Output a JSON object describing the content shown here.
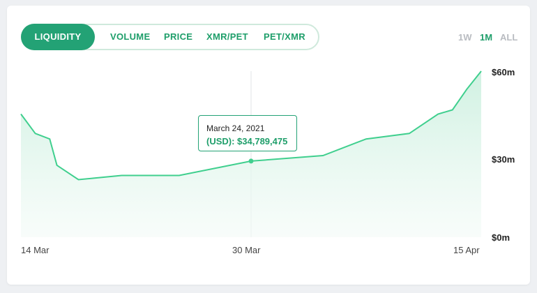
{
  "tabs": [
    {
      "label": "LIQUIDITY",
      "active": true
    },
    {
      "label": "VOLUME",
      "active": false
    },
    {
      "label": "PRICE",
      "active": false
    },
    {
      "label": "XMR/PET",
      "active": false
    },
    {
      "label": "PET/XMR",
      "active": false
    }
  ],
  "ranges": [
    {
      "label": "1W",
      "active": false
    },
    {
      "label": "1M",
      "active": true
    },
    {
      "label": "ALL",
      "active": false
    }
  ],
  "tooltip": {
    "date": "March 24, 2021",
    "value": "(USD): $34,789,475"
  },
  "colors": {
    "accent": "#23a275",
    "line": "#3fcf8e",
    "area": "#e3f7ee",
    "muted": "#b9bcc1"
  },
  "chart_data": {
    "type": "area",
    "title": "",
    "xlabel": "",
    "ylabel": "",
    "x_tick_labels": [
      "14 Mar",
      "30 Mar",
      "15 Apr"
    ],
    "y_tick_labels": [
      "$60m",
      "$30m",
      "$0m"
    ],
    "y_ticks": [
      60,
      30,
      0
    ],
    "ylim": [
      0,
      60
    ],
    "x_range": [
      "2021-03-14",
      "2021-04-15"
    ],
    "grid": false,
    "series": [
      {
        "values": [
          {
            "x": "2021-03-14",
            "y": 44.5
          },
          {
            "x": "2021-03-15",
            "y": 37.5
          },
          {
            "x": "2021-03-16",
            "y": 35.5
          },
          {
            "x": "2021-03-16.5",
            "y": 26.0
          },
          {
            "x": "2021-03-18",
            "y": 20.8
          },
          {
            "x": "2021-03-21",
            "y": 22.3
          },
          {
            "x": "2021-03-25",
            "y": 22.3
          },
          {
            "x": "2021-03-30",
            "y": 27.5
          },
          {
            "x": "2021-04-04",
            "y": 29.5
          },
          {
            "x": "2021-04-07",
            "y": 35.5
          },
          {
            "x": "2021-04-10",
            "y": 37.5
          },
          {
            "x": "2021-04-12",
            "y": 44.5
          },
          {
            "x": "2021-04-13",
            "y": 46.0
          },
          {
            "x": "2021-04-14",
            "y": 53.5
          },
          {
            "x": "2021-04-15",
            "y": 60.0
          }
        ]
      }
    ],
    "highlight": {
      "x": "2021-03-30",
      "y": 27.5
    }
  }
}
